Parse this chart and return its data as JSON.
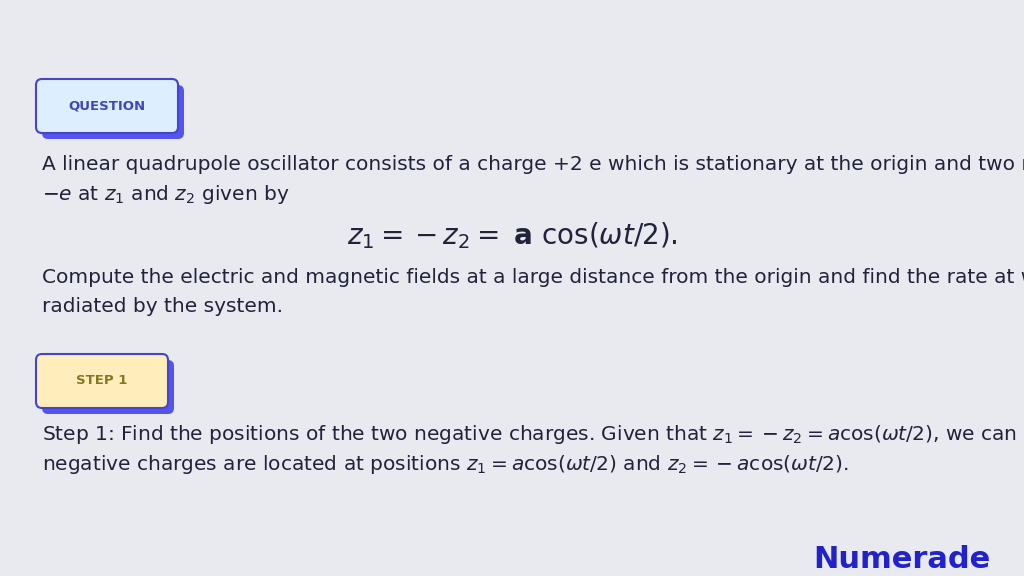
{
  "background_color": "#e8eaf0",
  "question_label": "QUESTION",
  "question_label_color": "#4444bb",
  "question_box_facecolor": "#ddeeff",
  "question_box_edgecolor": "#4444cc",
  "question_shadow_color": "#5555ee",
  "step_label": "STEP 1",
  "step_label_color": "#887722",
  "step_box_facecolor": "#ffeebb",
  "step_box_edgecolor": "#4444cc",
  "step_shadow_color": "#5555ee",
  "body_text_color": "#22223a",
  "numerade_color": "#2222cc",
  "line1": "A linear quadrupole oscillator consists of a charge +2 e which is stationary at the origin and two negative charges of",
  "compute_line1": "Compute the electric and magnetic fields at a large distance from the origin and find the rate at which energy is",
  "compute_line2": "radiated by the system.",
  "numerade_text": "Numerade"
}
